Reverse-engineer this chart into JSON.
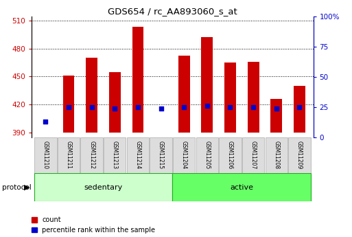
{
  "title": "GDS654 / rc_AA893060_s_at",
  "samples": [
    "GSM11210",
    "GSM11211",
    "GSM11212",
    "GSM11213",
    "GSM11214",
    "GSM11215",
    "GSM11204",
    "GSM11205",
    "GSM11206",
    "GSM11207",
    "GSM11208",
    "GSM11209"
  ],
  "groups": [
    "sedentary",
    "sedentary",
    "sedentary",
    "sedentary",
    "sedentary",
    "sedentary",
    "active",
    "active",
    "active",
    "active",
    "active",
    "active"
  ],
  "counts": [
    390,
    451,
    470,
    455,
    503,
    390,
    472,
    492,
    465,
    466,
    426,
    440
  ],
  "pct_ranks": [
    13,
    25,
    25,
    24,
    25,
    24,
    25,
    26,
    25,
    25,
    24,
    25
  ],
  "bar_bottom": 390,
  "ylim_left": [
    385,
    514
  ],
  "ylim_right": [
    0,
    100
  ],
  "yticks_left": [
    390,
    420,
    450,
    480,
    510
  ],
  "yticks_right": [
    0,
    25,
    50,
    75,
    100
  ],
  "ytick_labels_right": [
    "0",
    "25",
    "50",
    "75",
    "100%"
  ],
  "bar_color": "#cc0000",
  "dot_color": "#0000cc",
  "grid_color": "#000000",
  "sedentary_color": "#ccffcc",
  "active_color": "#66ff66",
  "label_color_left": "#cc0000",
  "label_color_right": "#0000cc",
  "sedentary_label": "sedentary",
  "active_label": "active",
  "legend_count": "count",
  "legend_pct": "percentile rank within the sample",
  "tick_label_bg": "#dddddd",
  "tick_label_edge": "#aaaaaa"
}
